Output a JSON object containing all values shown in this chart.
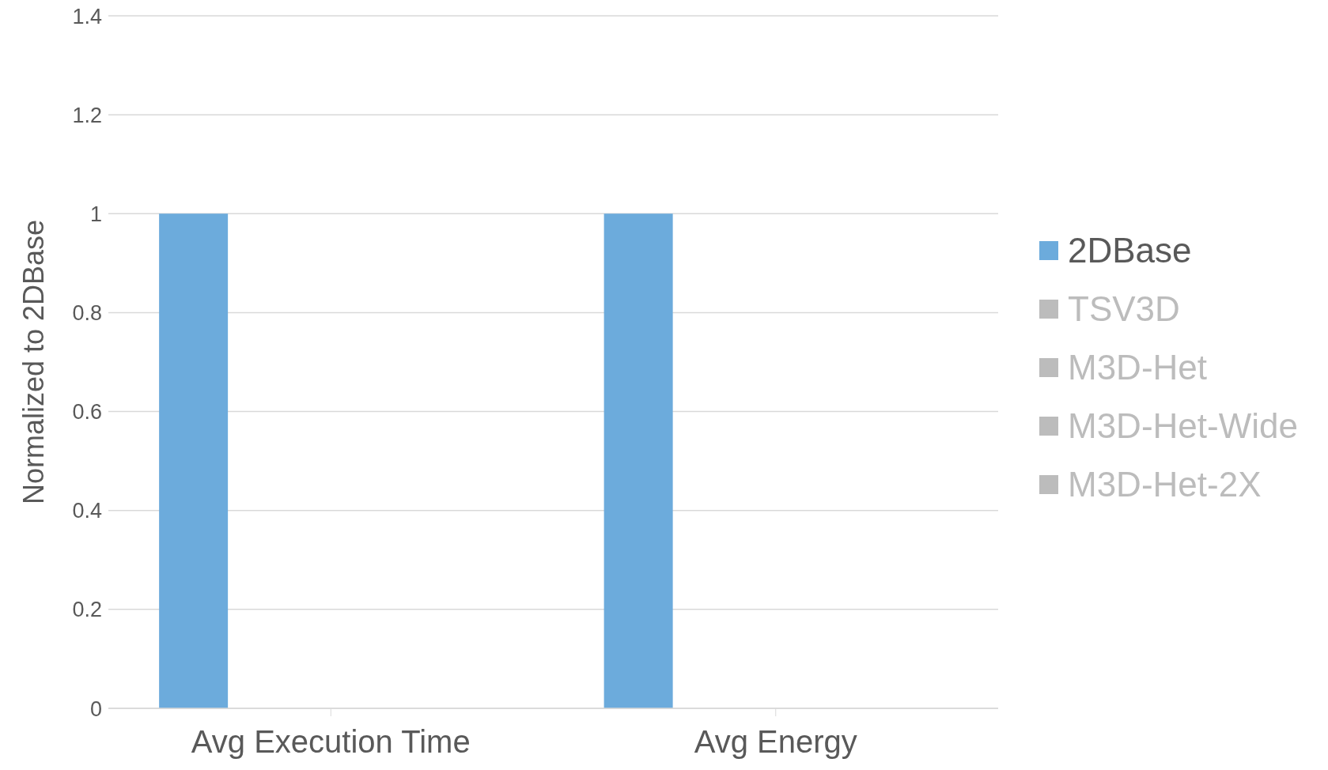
{
  "chart_data": {
    "type": "bar",
    "categories": [
      "Avg Execution Time",
      "Avg Energy"
    ],
    "ylabel": "Normalized to 2DBase",
    "ylim": [
      0,
      1.4
    ],
    "yticks": [
      0,
      0.2,
      0.4,
      0.6,
      0.8,
      1,
      1.2,
      1.4
    ],
    "grid": "y",
    "legend": "right",
    "series": [
      {
        "name": "2DBase",
        "color": "#6cabdc",
        "values": [
          1,
          1
        ]
      },
      {
        "name": "TSV3D",
        "color": "#bcbcbc",
        "values": [
          null,
          null
        ]
      },
      {
        "name": "M3D-Het",
        "color": "#bcbcbc",
        "values": [
          null,
          null
        ]
      },
      {
        "name": "M3D-Het-Wide",
        "color": "#bcbcbc",
        "values": [
          null,
          null
        ]
      },
      {
        "name": "M3D-Het-2X",
        "color": "#bcbcbc",
        "values": [
          null,
          null
        ]
      }
    ]
  }
}
